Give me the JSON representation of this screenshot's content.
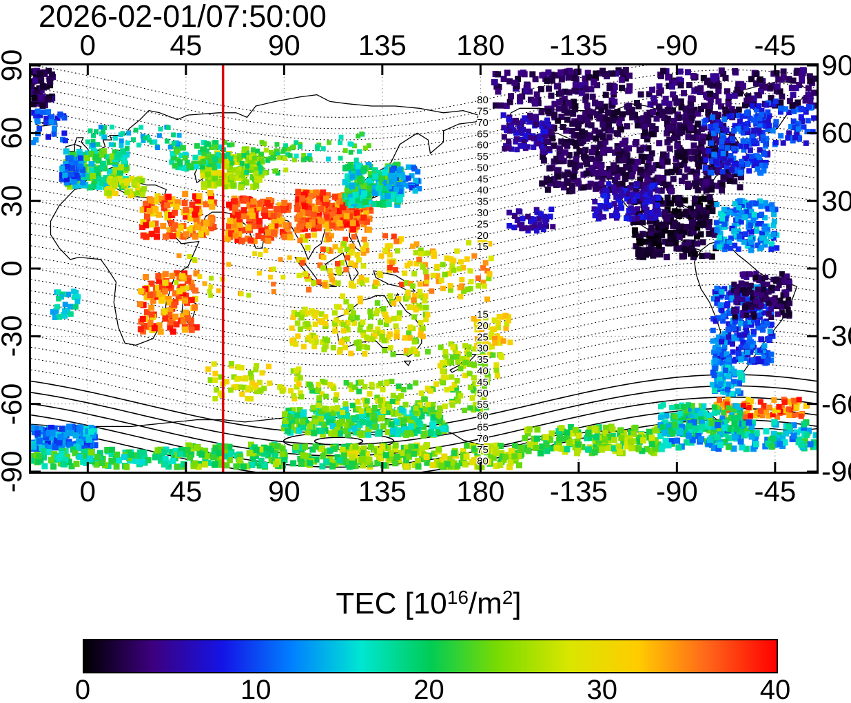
{
  "title": "2026-02-01/07:50:00",
  "chart_data": {
    "type": "heatmap",
    "description": "Global ionospheric total electron content (TEC) observations over a world map with geomagnetic-latitude contour lines and a solar terminator meridian line",
    "projection": "equirectangular",
    "lon_range": [
      -26,
      334
    ],
    "lat_range": [
      -90,
      90
    ],
    "x_axis": {
      "tick_lons": [
        0,
        45,
        90,
        135,
        180,
        225,
        270,
        315
      ],
      "tick_labels": [
        "0",
        "45",
        "90",
        "135",
        "180",
        "-135",
        "-90",
        "-45"
      ]
    },
    "y_axis": {
      "tick_lats": [
        90,
        60,
        30,
        0,
        -30,
        -60,
        -90
      ],
      "tick_labels": [
        "90",
        "60",
        "30",
        "0",
        "-30",
        "-60",
        "-90"
      ]
    },
    "grid": {
      "lon_step": 45,
      "lat_step": 30,
      "style": "dotted",
      "color": "#808080"
    },
    "terminator_lon": 62,
    "terminator_color": "#dd0000",
    "contours": {
      "kind": "geomagnetic-latitude",
      "labeled_levels": [
        15,
        20,
        25,
        30,
        35,
        40,
        45,
        50,
        55,
        60,
        65,
        70,
        75,
        80
      ],
      "hemispheres": "both",
      "minor_step": 5,
      "amplitude_deg": 13,
      "phase_lon": 295,
      "label_lon": 181,
      "solid_south_from": 60
    },
    "colorbar": {
      "title_parts": {
        "prefix": "TEC  [10",
        "sup1": "16",
        "mid": "/m",
        "sup2": "2",
        "suffix": "]"
      },
      "range": [
        0,
        40
      ],
      "tick_values": [
        0,
        10,
        20,
        30,
        40
      ],
      "tick_labels": [
        "0",
        "10",
        "20",
        "30",
        "40"
      ],
      "stops": [
        [
          0,
          "#000000"
        ],
        [
          4,
          "#3d0080"
        ],
        [
          8,
          "#1414e6"
        ],
        [
          12,
          "#0080ff"
        ],
        [
          16,
          "#00e6d2"
        ],
        [
          20,
          "#00cc55"
        ],
        [
          24,
          "#7ddb00"
        ],
        [
          28,
          "#d9e600"
        ],
        [
          32,
          "#ffcc00"
        ],
        [
          36,
          "#ff661a"
        ],
        [
          40,
          "#ff0000"
        ]
      ]
    },
    "tec_regions": [
      {
        "name": "north-america-core",
        "lon": [
          208,
          300
        ],
        "lat": [
          34,
          72
        ],
        "tec": [
          1,
          4
        ],
        "n": 620,
        "size": 9
      },
      {
        "name": "arctic-band",
        "lon": [
          186,
          334
        ],
        "lat": [
          72,
          88
        ],
        "tec": [
          1,
          5
        ],
        "n": 300,
        "size": 9
      },
      {
        "name": "alaska-west",
        "lon": [
          190,
          212
        ],
        "lat": [
          52,
          68
        ],
        "tec": [
          3,
          8
        ],
        "n": 90,
        "size": 8
      },
      {
        "name": "mexico-dark",
        "lon": [
          250,
          288
        ],
        "lat": [
          5,
          32
        ],
        "tec": [
          0,
          3
        ],
        "n": 220,
        "size": 9
      },
      {
        "name": "us-south-blue",
        "lon": [
          232,
          262
        ],
        "lat": [
          22,
          38
        ],
        "tec": [
          4,
          9
        ],
        "n": 120,
        "size": 8
      },
      {
        "name": "east-canada-blue",
        "lon": [
          282,
          312
        ],
        "lat": [
          42,
          68
        ],
        "tec": [
          6,
          12
        ],
        "n": 150,
        "size": 8
      },
      {
        "name": "caribbean-cyan",
        "lon": [
          288,
          316
        ],
        "lat": [
          8,
          30
        ],
        "tec": [
          8,
          16
        ],
        "n": 160,
        "size": 8
      },
      {
        "name": "north-atlantic-blue",
        "lon": [
          300,
          334
        ],
        "lat": [
          55,
          75
        ],
        "tec": [
          6,
          12
        ],
        "n": 80,
        "size": 8
      },
      {
        "name": "south-america-blue",
        "lon": [
          286,
          314
        ],
        "lat": [
          -42,
          -8
        ],
        "tec": [
          6,
          14
        ],
        "n": 260,
        "size": 8
      },
      {
        "name": "brazil-dark",
        "lon": [
          296,
          322
        ],
        "lat": [
          -22,
          -2
        ],
        "tec": [
          1,
          5
        ],
        "n": 130,
        "size": 8
      },
      {
        "name": "patagonia-cyan",
        "lon": [
          286,
          300
        ],
        "lat": [
          -56,
          -40
        ],
        "tec": [
          10,
          17
        ],
        "n": 90,
        "size": 8
      },
      {
        "name": "antarctic-peninsula-red",
        "lon": [
          288,
          330
        ],
        "lat": [
          -66,
          -58
        ],
        "tec": [
          30,
          40
        ],
        "n": 90,
        "size": 8
      },
      {
        "name": "weddell-mix",
        "lon": [
          262,
          300
        ],
        "lat": [
          -72,
          -60
        ],
        "tec": [
          12,
          24
        ],
        "n": 130,
        "size": 8
      },
      {
        "name": "ross-band-yellow",
        "lon": [
          200,
          262
        ],
        "lat": [
          -82,
          -70
        ],
        "tec": [
          18,
          28
        ],
        "n": 170,
        "size": 9
      },
      {
        "name": "bellingshausen-cyan",
        "lon": [
          262,
          334
        ],
        "lat": [
          -80,
          -68
        ],
        "tec": [
          10,
          22
        ],
        "n": 190,
        "size": 9
      },
      {
        "name": "weddell-left-cyan",
        "lon": [
          -26,
          5
        ],
        "lat": [
          -80,
          -70
        ],
        "tec": [
          8,
          16
        ],
        "n": 130,
        "size": 9
      },
      {
        "name": "bottom-left-green",
        "lon": [
          -26,
          45
        ],
        "lat": [
          -88,
          -80
        ],
        "tec": [
          15,
          24
        ],
        "n": 140,
        "size": 9
      },
      {
        "name": "bottom-mid-green",
        "lon": [
          45,
          120
        ],
        "lat": [
          -88,
          -78
        ],
        "tec": [
          17,
          27
        ],
        "n": 190,
        "size": 9
      },
      {
        "name": "bottom-right-yellow",
        "lon": [
          120,
          200
        ],
        "lat": [
          -88,
          -78
        ],
        "tec": [
          20,
          30
        ],
        "n": 190,
        "size": 9
      },
      {
        "name": "antarctic-green-band",
        "lon": [
          90,
          165
        ],
        "lat": [
          -74,
          -62
        ],
        "tec": [
          15,
          26
        ],
        "n": 240,
        "size": 9
      },
      {
        "name": "subantarctic-yellow",
        "lon": [
          100,
          185
        ],
        "lat": [
          -64,
          -50
        ],
        "tec": [
          20,
          30
        ],
        "n": 130,
        "size": 8
      },
      {
        "name": "indian-ocean-orange",
        "lon": [
          55,
          100
        ],
        "lat": [
          -58,
          -42
        ],
        "tec": [
          24,
          32
        ],
        "n": 65,
        "size": 8
      },
      {
        "name": "new-zealand-scatter",
        "lon": [
          160,
          190
        ],
        "lat": [
          -50,
          -33
        ],
        "tec": [
          22,
          30
        ],
        "n": 65,
        "size": 8
      },
      {
        "name": "southwest-pacific-red",
        "lon": [
          176,
          196
        ],
        "lat": [
          -36,
          -20
        ],
        "tec": [
          27,
          35
        ],
        "n": 40,
        "size": 8
      },
      {
        "name": "australia-scatter",
        "lon": [
          112,
          156
        ],
        "lat": [
          -38,
          -12
        ],
        "tec": [
          22,
          33
        ],
        "n": 130,
        "size": 8
      },
      {
        "name": "west-australia",
        "lon": [
          93,
          114
        ],
        "lat": [
          -36,
          -18
        ],
        "tec": [
          24,
          32
        ],
        "n": 55,
        "size": 8
      },
      {
        "name": "southeast-asia-eq",
        "lon": [
          95,
          145
        ],
        "lat": [
          -10,
          15
        ],
        "tec": [
          25,
          38
        ],
        "n": 100,
        "size": 8
      },
      {
        "name": "pacific-eq",
        "lon": [
          145,
          185
        ],
        "lat": [
          -14,
          12
        ],
        "tec": [
          24,
          36
        ],
        "n": 85,
        "size": 8
      },
      {
        "name": "east-africa-red",
        "lon": [
          24,
          50
        ],
        "lat": [
          -28,
          -2
        ],
        "tec": [
          30,
          40
        ],
        "n": 120,
        "size": 9
      },
      {
        "name": "arabia-red",
        "lon": [
          25,
          58
        ],
        "lat": [
          14,
          34
        ],
        "tec": [
          30,
          40
        ],
        "n": 120,
        "size": 9
      },
      {
        "name": "india-red",
        "lon": [
          64,
          94
        ],
        "lat": [
          12,
          31
        ],
        "tec": [
          32,
          40
        ],
        "n": 140,
        "size": 9
      },
      {
        "name": "china-red",
        "lon": [
          96,
          130
        ],
        "lat": [
          17,
          34
        ],
        "tec": [
          32,
          40
        ],
        "n": 240,
        "size": 9
      },
      {
        "name": "east-asia-cyan",
        "lon": [
          118,
          144
        ],
        "lat": [
          28,
          46
        ],
        "tec": [
          13,
          24
        ],
        "n": 210,
        "size": 9
      },
      {
        "name": "central-asia-yellow",
        "lon": [
          52,
          80
        ],
        "lat": [
          36,
          51
        ],
        "tec": [
          22,
          30
        ],
        "n": 140,
        "size": 9
      },
      {
        "name": "west-russia-green",
        "lon": [
          38,
          62
        ],
        "lat": [
          44,
          56
        ],
        "tec": [
          15,
          23
        ],
        "n": 60,
        "size": 8
      },
      {
        "name": "europe-green",
        "lon": [
          -10,
          18
        ],
        "lat": [
          36,
          52
        ],
        "tec": [
          14,
          26
        ],
        "n": 160,
        "size": 9
      },
      {
        "name": "iberia-blue",
        "lon": [
          -12,
          -2
        ],
        "lat": [
          38,
          49
        ],
        "tec": [
          8,
          14
        ],
        "n": 55,
        "size": 8
      },
      {
        "name": "mediterranean-orange",
        "lon": [
          8,
          26
        ],
        "lat": [
          32,
          40
        ],
        "tec": [
          24,
          32
        ],
        "n": 55,
        "size": 8
      },
      {
        "name": "north-europe-scatter",
        "lon": [
          0,
          42
        ],
        "lat": [
          53,
          63
        ],
        "tec": [
          12,
          20
        ],
        "n": 50,
        "size": 7
      },
      {
        "name": "topleft-dark",
        "lon": [
          -26,
          -16
        ],
        "lat": [
          72,
          88
        ],
        "tec": [
          0,
          5
        ],
        "n": 55,
        "size": 9
      },
      {
        "name": "nw-atlantic-blue",
        "lon": [
          -25,
          -10
        ],
        "lat": [
          55,
          70
        ],
        "tec": [
          7,
          13
        ],
        "n": 30,
        "size": 8
      },
      {
        "name": "hawaii-purple",
        "lon": [
          193,
          214
        ],
        "lat": [
          16,
          27
        ],
        "tec": [
          3,
          8
        ],
        "n": 40,
        "size": 8
      },
      {
        "name": "south-atlantic-cyan",
        "lon": [
          -16,
          -4
        ],
        "lat": [
          -22,
          -10
        ],
        "tec": [
          13,
          19
        ],
        "n": 28,
        "size": 8
      },
      {
        "name": "japan-blue",
        "lon": [
          138,
          152
        ],
        "lat": [
          34,
          45
        ],
        "tec": [
          9,
          15
        ],
        "n": 40,
        "size": 8
      },
      {
        "name": "kazakh-yellow",
        "lon": [
          62,
          95
        ],
        "lat": [
          42,
          56
        ],
        "tec": [
          18,
          27
        ],
        "n": 70,
        "size": 7
      },
      {
        "name": "siberia-scatter",
        "lon": [
          95,
          130
        ],
        "lat": [
          48,
          60
        ],
        "tec": [
          15,
          24
        ],
        "n": 30,
        "size": 7
      },
      {
        "name": "indian-eq-scatter",
        "lon": [
          40,
          95
        ],
        "lat": [
          -12,
          8
        ],
        "tec": [
          26,
          36
        ],
        "n": 30,
        "size": 7
      }
    ]
  }
}
